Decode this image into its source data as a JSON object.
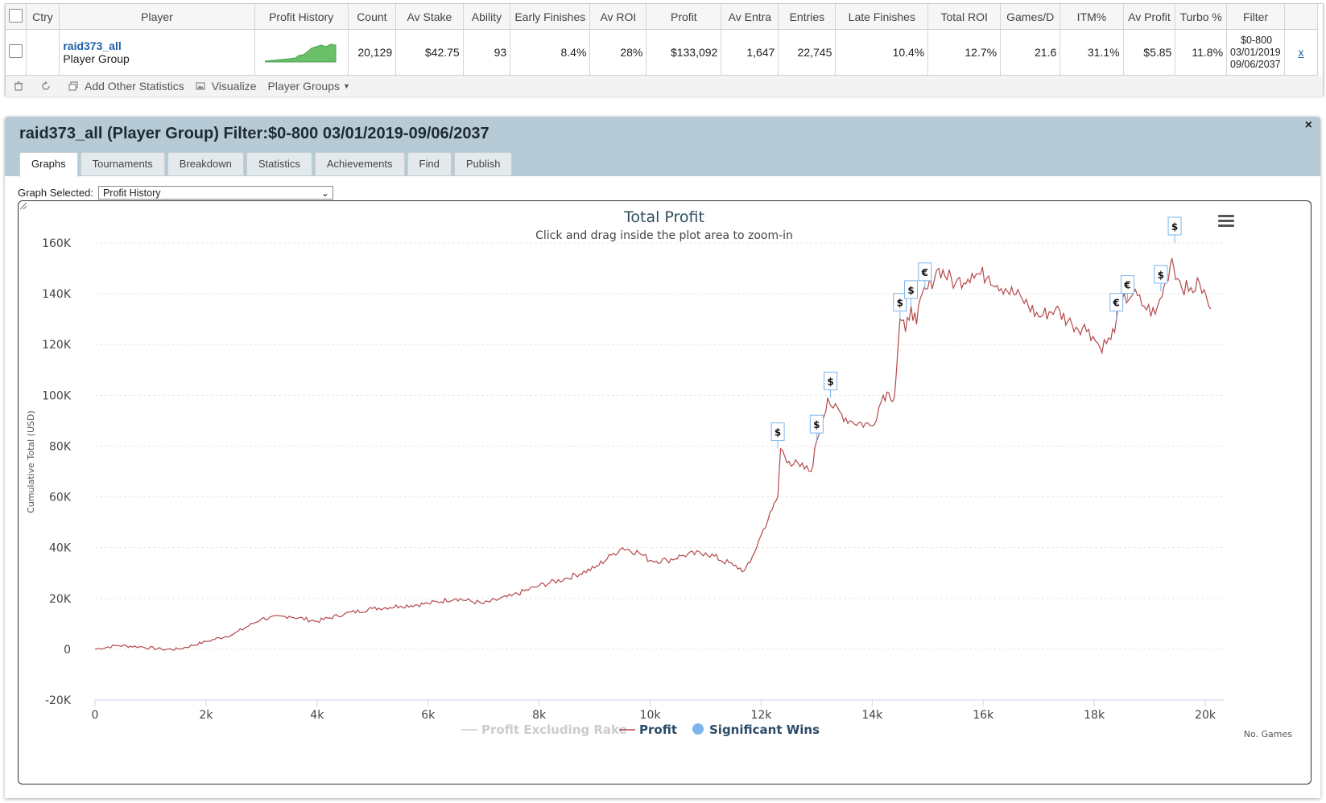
{
  "grid": {
    "columns": [
      "",
      "Ctry",
      "Player",
      "Profit History",
      "Count",
      "Av Stake",
      "Ability",
      "Early Finishes",
      "Av ROI",
      "Profit",
      "Av Entra",
      "Entries",
      "Late Finishes",
      "Total ROI",
      "Games/D",
      "ITM%",
      "Av Profit",
      "Turbo %",
      "Filter",
      ""
    ],
    "row": {
      "player_name": "raid373_all",
      "player_type": "Player Group",
      "count": "20,129",
      "av_stake": "$42.75",
      "ability": "93",
      "early_finishes": "8.4%",
      "av_roi": "28%",
      "profit": "$133,092",
      "av_entrants": "1,647",
      "entries": "22,745",
      "late_finishes": "10.4%",
      "total_roi": "12.7%",
      "games_per_day": "21.6",
      "itm": "31.1%",
      "av_profit": "$5.85",
      "turbo": "11.8%",
      "filter_line1": "$0-800",
      "filter_line2": "03/01/2019",
      "filter_line3": "09/06/2037",
      "remove_link": "x"
    },
    "toolbar": {
      "add_stats": "Add Other Statistics",
      "visualize": "Visualize",
      "player_groups": "Player Groups"
    }
  },
  "panel": {
    "title": "raid373_all (Player Group) Filter:$0-800 03/01/2019-09/06/2037",
    "close": "×",
    "tabs": [
      "Graphs",
      "Tournaments",
      "Breakdown",
      "Statistics",
      "Achievements",
      "Find",
      "Publish"
    ],
    "graph_selected_label": "Graph Selected:",
    "graph_selected_value": "Profit History"
  },
  "chart_data": {
    "type": "line",
    "title": "Total Profit",
    "subtitle": "Click and drag inside the plot area to zoom-in",
    "ylabel": "Cumulative Total (USD)",
    "xlabel": "No. Games",
    "xlim": [
      0,
      20129
    ],
    "ylim": [
      -20000,
      160000
    ],
    "y_ticks": [
      "-20K",
      "0",
      "20K",
      "40K",
      "60K",
      "80K",
      "100K",
      "120K",
      "140K",
      "160K"
    ],
    "x_ticks": [
      "0",
      "2k",
      "4k",
      "6k",
      "8k",
      "10k",
      "12k",
      "14k",
      "16k",
      "18k",
      "20k"
    ],
    "grid": true,
    "legend_position": "bottom",
    "series": [
      {
        "name": "Profit Excluding Rake",
        "color": "#cccccc",
        "hidden": true,
        "values": []
      },
      {
        "name": "Profit",
        "color": "#b5484a",
        "x": [
          0,
          400,
          800,
          1200,
          1500,
          2000,
          2500,
          3000,
          3500,
          4000,
          4500,
          5000,
          5500,
          6000,
          6500,
          7000,
          7500,
          8000,
          8500,
          9000,
          9300,
          9500,
          9800,
          10000,
          10300,
          10600,
          11000,
          11500,
          11700,
          11800,
          12000,
          12200,
          12300,
          12350,
          12500,
          12700,
          12900,
          13000,
          13100,
          13200,
          13300,
          13600,
          14000,
          14200,
          14300,
          14400,
          14500,
          14600,
          14700,
          14800,
          14900,
          15000,
          15200,
          15500,
          15800,
          16100,
          16400,
          16700,
          17000,
          17300,
          17600,
          17900,
          18100,
          18300,
          18400,
          18500,
          18700,
          18900,
          19100,
          19300,
          19400,
          19500,
          19700,
          19900,
          20100
        ],
        "values": [
          0,
          1500,
          1000,
          0,
          0,
          3000,
          6000,
          12000,
          13000,
          11000,
          14000,
          16000,
          17000,
          18000,
          20000,
          18000,
          21000,
          25000,
          28000,
          32000,
          37000,
          40000,
          38000,
          35000,
          35000,
          37000,
          38000,
          33000,
          31000,
          34000,
          45000,
          55000,
          60000,
          79000,
          74000,
          72000,
          70000,
          82000,
          90000,
          99000,
          95000,
          90000,
          88000,
          100000,
          101000,
          99000,
          130000,
          125000,
          135000,
          128000,
          140000,
          142000,
          150000,
          144000,
          148000,
          147000,
          142000,
          138000,
          131000,
          134000,
          128000,
          126000,
          119000,
          122000,
          130000,
          137000,
          140000,
          135000,
          132000,
          145000,
          154000,
          146000,
          141000,
          144000,
          134000
        ]
      },
      {
        "name": "Significant Wins",
        "color": "#7cb5ec",
        "points": [
          {
            "x": 12300,
            "y": 79000,
            "symbol": "$"
          },
          {
            "x": 13000,
            "y": 82000,
            "symbol": "$"
          },
          {
            "x": 13250,
            "y": 99000,
            "symbol": "$"
          },
          {
            "x": 14500,
            "y": 130000,
            "symbol": "$"
          },
          {
            "x": 14700,
            "y": 135000,
            "symbol": "$"
          },
          {
            "x": 14950,
            "y": 142000,
            "symbol": "€"
          },
          {
            "x": 18400,
            "y": 130000,
            "symbol": "€"
          },
          {
            "x": 18600,
            "y": 137000,
            "symbol": "€"
          },
          {
            "x": 19200,
            "y": 141000,
            "symbol": "$"
          },
          {
            "x": 19450,
            "y": 160000,
            "symbol": "$"
          }
        ]
      }
    ]
  }
}
